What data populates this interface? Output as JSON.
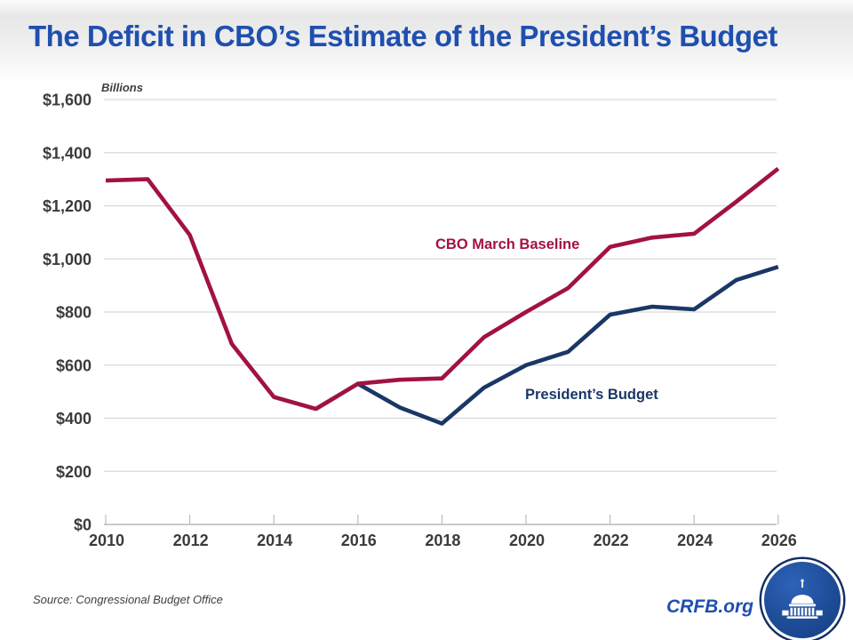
{
  "header": {
    "title": "The Deficit in CBO’s Estimate of the President’s Budget"
  },
  "theme": {
    "title_blue": "#1F4FAF",
    "baseline_red": "#A11243",
    "budget_navy": "#1A3766",
    "axis_text": "#3B3B3B",
    "gridline_gray": "#D9D9D9"
  },
  "chart_data": {
    "type": "line",
    "title": "The Deficit in CBO’s Estimate of the President’s Budget",
    "unit_label": "Billions",
    "xlabel": "",
    "ylabel": "Billions",
    "ylim": [
      0,
      1600
    ],
    "grid": "horizontal",
    "legend_position": "inline-annotations",
    "x": [
      2010,
      2011,
      2012,
      2013,
      2014,
      2015,
      2016,
      2017,
      2018,
      2019,
      2020,
      2021,
      2022,
      2023,
      2024,
      2025,
      2026
    ],
    "x_tick_years": [
      2010,
      2012,
      2014,
      2016,
      2018,
      2020,
      2022,
      2024,
      2026
    ],
    "y_ticks": [
      {
        "value": 0,
        "label": "$0"
      },
      {
        "value": 200,
        "label": "$200"
      },
      {
        "value": 400,
        "label": "$400"
      },
      {
        "value": 600,
        "label": "$600"
      },
      {
        "value": 800,
        "label": "$800"
      },
      {
        "value": 1000,
        "label": "$1,000"
      },
      {
        "value": 1200,
        "label": "$1,200"
      },
      {
        "value": 1400,
        "label": "$1,400"
      },
      {
        "value": 1600,
        "label": "$1,600"
      }
    ],
    "series": [
      {
        "id": "cbo-march-baseline",
        "name": "CBO March Baseline",
        "color": "#A11243",
        "values": [
          1295,
          1300,
          1090,
          680,
          480,
          435,
          530,
          545,
          550,
          705,
          800,
          890,
          1045,
          1080,
          1095,
          1215,
          1340
        ]
      },
      {
        "id": "presidents-budget",
        "name": "President’s Budget",
        "color": "#1A3766",
        "values": [
          null,
          null,
          null,
          null,
          null,
          435,
          530,
          440,
          380,
          515,
          600,
          650,
          790,
          820,
          810,
          920,
          970
        ]
      }
    ],
    "annotations": [
      {
        "text": "CBO March Baseline",
        "color": "#A11243"
      },
      {
        "text": "President’s Budget",
        "color": "#1A3766"
      }
    ]
  },
  "footer": {
    "source": "Source: Congressional Budget Office",
    "brand": "CRFB.org"
  }
}
